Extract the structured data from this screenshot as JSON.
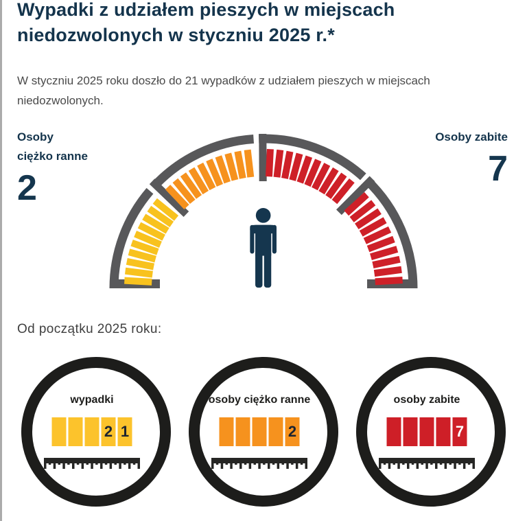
{
  "page": {
    "title": "Wypadki z udziałem pieszych w miejscach niedozwolonych w styczniu 2025 r.*",
    "subtitle": "W styczniu 2025 roku doszło do 21 wypadków z udziałem pieszych w miejscach niedozwolonych.",
    "section_heading": "Od początku 2025 roku:"
  },
  "gauge": {
    "left_label_line1": "Osoby",
    "left_label_line2": "ciężko ranne",
    "left_value": "2",
    "right_label": "Osoby zabite",
    "right_value": "7",
    "colors": {
      "arc": "#58585a",
      "yellow": "#f8c21e",
      "orange": "#f6921e",
      "red": "#ce2028",
      "navy": "#15364e"
    },
    "sections": [
      {
        "color_key": "yellow",
        "ticks": 10,
        "from": 176.8,
        "to": 141.2
      },
      {
        "color_key": "orange",
        "ticks": 10,
        "from": 133.4,
        "to": 96.6
      },
      {
        "color_key": "red",
        "ticks": 10,
        "from": 87.2,
        "to": 50.6
      },
      {
        "color_key": "red",
        "ticks": 10,
        "from": 42.2,
        "to": 3.4
      }
    ],
    "arc_segments": [
      [
        180,
        139.4
      ],
      [
        137.4,
        93.8
      ],
      [
        91.8,
        48.2
      ],
      [
        46.2,
        0
      ]
    ],
    "dividers": [
      136.2,
      90.3,
      45.2
    ]
  },
  "counters": [
    {
      "label": "wypadki",
      "digits": [
        "",
        "",
        "",
        "2",
        "1"
      ],
      "block_color": "#fcc32c",
      "digit_color": "#1d2430"
    },
    {
      "label": "osoby ciężko ranne",
      "digits": [
        "",
        "",
        "",
        "",
        "2"
      ],
      "block_color": "#f6921e",
      "digit_color": "#1d2430"
    },
    {
      "label": "osoby zabite",
      "digits": [
        "",
        "",
        "",
        "",
        "7"
      ],
      "block_color": "#ce1f27",
      "digit_color": "#ffffff"
    }
  ],
  "chart_data": {
    "type": "table",
    "title": "Wypadki z udziałem pieszych w miejscach niedozwolonych w styczniu 2025 r.*",
    "subtitle": "W styczniu 2025 roku doszło do 21 wypadków z udziałem pieszych w miejscach niedozwolonych.",
    "period": "styczeń 2025",
    "categories": [
      "wypadki",
      "osoby ciężko ranne",
      "osoby zabite"
    ],
    "values": [
      21,
      2,
      7
    ],
    "gauge_left": {
      "label": "Osoby ciężko ranne",
      "value": 2,
      "color": "#f8c21e"
    },
    "gauge_right": {
      "label": "Osoby zabite",
      "value": 7,
      "color": "#ce2028"
    }
  }
}
